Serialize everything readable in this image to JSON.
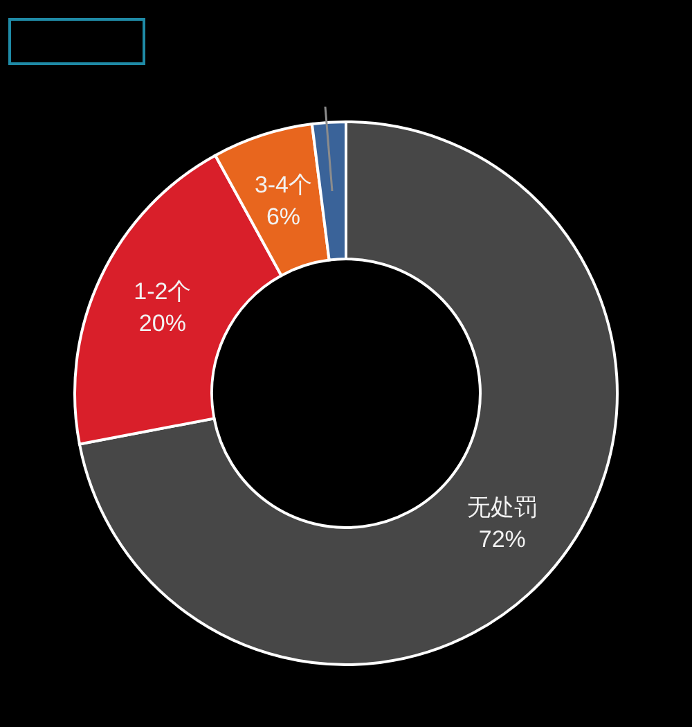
{
  "chart_data": {
    "type": "donut",
    "categories": [
      "无处罚",
      "1-2个",
      "3-4个",
      null
    ],
    "values": [
      72,
      20,
      6,
      2
    ],
    "colors": [
      "#474747",
      "#d91f2a",
      "#e8661e",
      "#3a6399"
    ],
    "value_labels": [
      "72%",
      "20%",
      "6%",
      null
    ]
  }
}
